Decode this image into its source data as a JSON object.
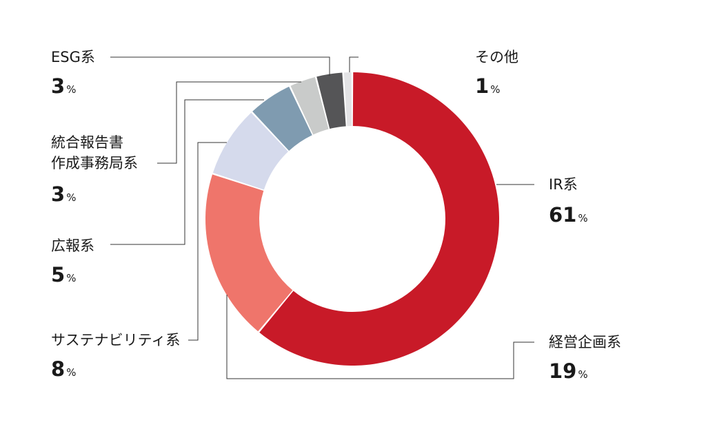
{
  "chart_data": {
    "type": "pie",
    "title": "",
    "unit": "%",
    "slices": [
      {
        "key": "ir",
        "label": [
          "IR系"
        ],
        "value": 61,
        "display": "61",
        "color": "#c81a28"
      },
      {
        "key": "keiei",
        "label": [
          "経営企画系"
        ],
        "value": 19,
        "display": "19",
        "color": "#ef756b"
      },
      {
        "key": "sustain",
        "label": [
          "サステナビリティ系"
        ],
        "value": 8,
        "display": "8",
        "color": "#d5daec"
      },
      {
        "key": "koho",
        "label": [
          "広報系"
        ],
        "value": 5,
        "display": "5",
        "color": "#7f9bb0"
      },
      {
        "key": "togo",
        "label": [
          "統合報告書",
          "作成事務局系"
        ],
        "value": 3,
        "display": "3",
        "color": "#c9cbca"
      },
      {
        "key": "esg",
        "label": [
          "ESG系"
        ],
        "value": 3,
        "display": "3",
        "color": "#555557"
      },
      {
        "key": "other",
        "label": [
          "その他"
        ],
        "value": 1,
        "display": "1",
        "color": "#e3e3e5"
      }
    ]
  }
}
